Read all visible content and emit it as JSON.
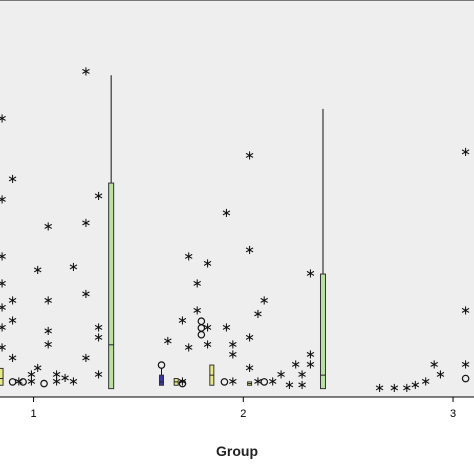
{
  "chart_data": {
    "type": "boxplot",
    "xlabel": "Group",
    "ylabel": "",
    "title": "",
    "groups": [
      "1",
      "2",
      "3"
    ],
    "group_positions": [
      1,
      2,
      3
    ],
    "xlim": [
      0.84,
      3.1
    ],
    "ylim": [
      0,
      100
    ],
    "colors": {
      "frame_fill": "#eeeeee",
      "box_green": "#b8e0a0",
      "box_yellow": "#e8e888",
      "box_blue": "#3a3a9a",
      "box_orange": "#f4c060"
    },
    "boxes": [
      {
        "x": 1.37,
        "q1": 1,
        "median": 14,
        "q3": 62,
        "whisker_low": 1,
        "whisker_high": 94,
        "color": "box_green"
      },
      {
        "x": 2.38,
        "q1": 1,
        "median": 5,
        "q3": 35,
        "whisker_low": 1,
        "whisker_high": 84,
        "color": "box_green"
      },
      {
        "x": 0.845,
        "q1": 2,
        "median": 4,
        "q3": 7,
        "whisker_low": 2,
        "whisker_high": 7,
        "color": "box_yellow"
      },
      {
        "x": 1.61,
        "q1": 2,
        "median": 3,
        "q3": 5,
        "whisker_low": 2,
        "whisker_high": 7,
        "color": "box_blue"
      },
      {
        "x": 1.68,
        "q1": 2,
        "median": 3,
        "q3": 4,
        "whisker_low": 2,
        "whisker_high": 4,
        "color": "box_yellow"
      },
      {
        "x": 1.85,
        "q1": 2,
        "median": 5,
        "q3": 8,
        "whisker_low": 2,
        "whisker_high": 8,
        "color": "box_yellow"
      },
      {
        "x": 2.03,
        "q1": 2,
        "median": 2.5,
        "q3": 3,
        "whisker_low": 2,
        "whisker_high": 3,
        "color": "box_yellow"
      }
    ],
    "extreme_outliers": [
      {
        "x": 0.85,
        "y": 81
      },
      {
        "x": 0.85,
        "y": 57
      },
      {
        "x": 0.85,
        "y": 40
      },
      {
        "x": 0.85,
        "y": 32
      },
      {
        "x": 0.85,
        "y": 25
      },
      {
        "x": 0.85,
        "y": 19
      },
      {
        "x": 0.85,
        "y": 13
      },
      {
        "x": 0.9,
        "y": 63
      },
      {
        "x": 0.9,
        "y": 27
      },
      {
        "x": 0.9,
        "y": 21
      },
      {
        "x": 0.9,
        "y": 10
      },
      {
        "x": 0.93,
        "y": 3
      },
      {
        "x": 0.99,
        "y": 5
      },
      {
        "x": 0.99,
        "y": 3
      },
      {
        "x": 1.02,
        "y": 36
      },
      {
        "x": 1.02,
        "y": 7
      },
      {
        "x": 1.07,
        "y": 49
      },
      {
        "x": 1.07,
        "y": 27
      },
      {
        "x": 1.07,
        "y": 14
      },
      {
        "x": 1.07,
        "y": 18
      },
      {
        "x": 1.11,
        "y": 5
      },
      {
        "x": 1.11,
        "y": 3
      },
      {
        "x": 1.15,
        "y": 4
      },
      {
        "x": 1.19,
        "y": 37
      },
      {
        "x": 1.19,
        "y": 3
      },
      {
        "x": 1.25,
        "y": 95
      },
      {
        "x": 1.25,
        "y": 50
      },
      {
        "x": 1.25,
        "y": 29
      },
      {
        "x": 1.25,
        "y": 10
      },
      {
        "x": 1.31,
        "y": 58
      },
      {
        "x": 1.31,
        "y": 19
      },
      {
        "x": 1.31,
        "y": 16
      },
      {
        "x": 1.31,
        "y": 5
      },
      {
        "x": 1.64,
        "y": 15
      },
      {
        "x": 1.71,
        "y": 21
      },
      {
        "x": 1.71,
        "y": 3
      },
      {
        "x": 1.74,
        "y": 40
      },
      {
        "x": 1.74,
        "y": 13
      },
      {
        "x": 1.78,
        "y": 32
      },
      {
        "x": 1.78,
        "y": 24
      },
      {
        "x": 1.83,
        "y": 38
      },
      {
        "x": 1.83,
        "y": 19
      },
      {
        "x": 1.83,
        "y": 14
      },
      {
        "x": 1.92,
        "y": 53
      },
      {
        "x": 1.92,
        "y": 19
      },
      {
        "x": 1.95,
        "y": 14
      },
      {
        "x": 1.95,
        "y": 11
      },
      {
        "x": 1.95,
        "y": 3
      },
      {
        "x": 2.03,
        "y": 70
      },
      {
        "x": 2.03,
        "y": 42
      },
      {
        "x": 2.03,
        "y": 16
      },
      {
        "x": 2.03,
        "y": 7
      },
      {
        "x": 2.07,
        "y": 23
      },
      {
        "x": 2.07,
        "y": 3
      },
      {
        "x": 2.1,
        "y": 27
      },
      {
        "x": 2.14,
        "y": 3
      },
      {
        "x": 2.18,
        "y": 5
      },
      {
        "x": 2.22,
        "y": 2
      },
      {
        "x": 2.25,
        "y": 8
      },
      {
        "x": 2.28,
        "y": 2
      },
      {
        "x": 2.28,
        "y": 5
      },
      {
        "x": 2.32,
        "y": 35
      },
      {
        "x": 2.32,
        "y": 11
      },
      {
        "x": 2.32,
        "y": 8
      },
      {
        "x": 2.65,
        "y": 1
      },
      {
        "x": 2.72,
        "y": 1
      },
      {
        "x": 2.78,
        "y": 1
      },
      {
        "x": 2.82,
        "y": 2
      },
      {
        "x": 2.87,
        "y": 3
      },
      {
        "x": 2.91,
        "y": 8
      },
      {
        "x": 2.94,
        "y": 5
      },
      {
        "x": 3.06,
        "y": 71
      },
      {
        "x": 3.06,
        "y": 24
      },
      {
        "x": 3.06,
        "y": 8
      }
    ],
    "mild_outliers": [
      {
        "x": 0.9,
        "y": 3
      },
      {
        "x": 0.95,
        "y": 3
      },
      {
        "x": 1.05,
        "y": 2.5
      },
      {
        "x": 1.61,
        "y": 8
      },
      {
        "x": 1.71,
        "y": 2.5
      },
      {
        "x": 1.8,
        "y": 21
      },
      {
        "x": 1.8,
        "y": 19
      },
      {
        "x": 1.8,
        "y": 17
      },
      {
        "x": 1.91,
        "y": 3
      },
      {
        "x": 2.1,
        "y": 3
      },
      {
        "x": 3.06,
        "y": 4
      }
    ]
  }
}
